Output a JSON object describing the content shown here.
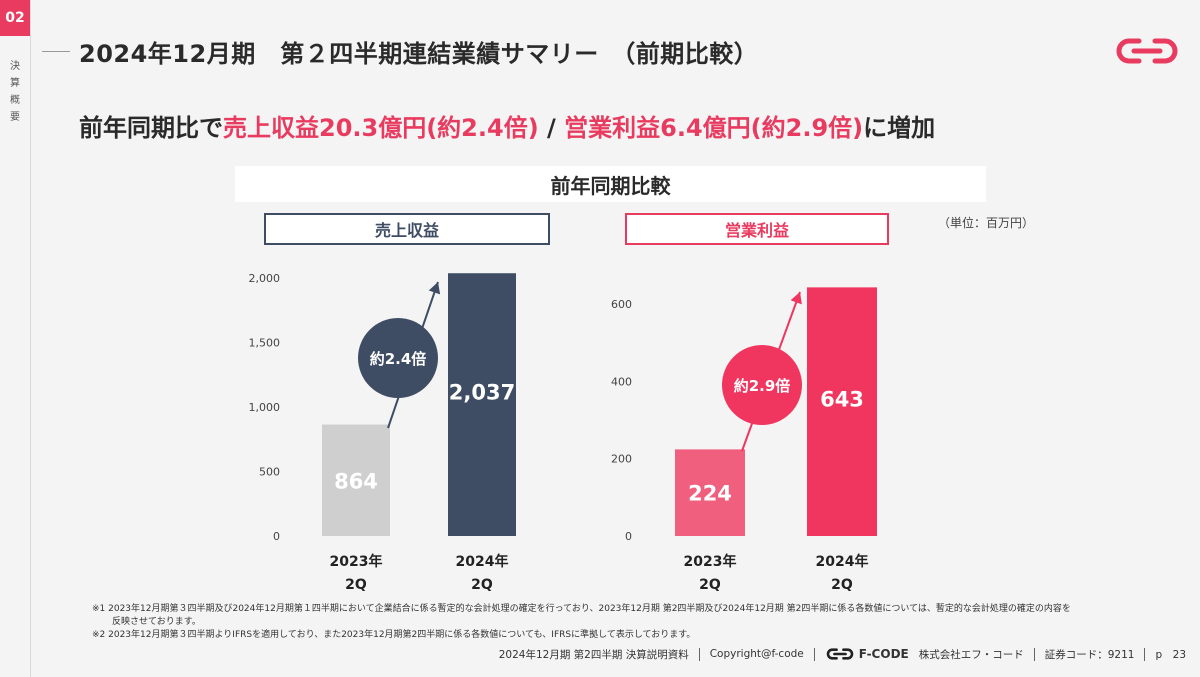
{
  "section": {
    "number": "02",
    "label": [
      "決",
      "算",
      "概",
      "要"
    ]
  },
  "page_title": "2024年12月期　第２四半期連結業績サマリー　（前期比較）",
  "headline": {
    "prefix": "前年同期比で",
    "sales": "売上収益20.3億円(約2.4倍)",
    "slash": " / ",
    "profit": "営業利益6.4億円(約2.9倍)",
    "suffix": "に増加"
  },
  "comparison_title": "前年同期比較",
  "unit_label": "（単位：百万円）",
  "colors": {
    "accent": "#e83b5f",
    "navy": "#3e4d63",
    "gray_bar": "#cfcfcf",
    "pink_light": "#f0607e",
    "pink_strong": "#f0365e"
  },
  "chart_data": [
    {
      "type": "bar",
      "title": "売上収益",
      "categories": [
        "2023年\n2Q",
        "2024年\n2Q"
      ],
      "values": [
        864,
        2037
      ],
      "value_labels": [
        "864",
        "2,037"
      ],
      "ylim": [
        0,
        2000
      ],
      "yticks": [
        0,
        500,
        1000,
        1500,
        2000
      ],
      "ytick_labels": [
        "0",
        "500",
        "1,000",
        "1,500",
        "2,000"
      ],
      "annotation": "約2.4倍",
      "bar_colors": [
        "#cfcfcf",
        "#3e4d63"
      ]
    },
    {
      "type": "bar",
      "title": "営業利益",
      "categories": [
        "2023年\n2Q",
        "2024年\n2Q"
      ],
      "values": [
        224,
        643
      ],
      "value_labels": [
        "224",
        "643"
      ],
      "ylim": [
        0,
        600
      ],
      "yticks": [
        0,
        200,
        400,
        600
      ],
      "ytick_labels": [
        "0",
        "200",
        "400",
        "600"
      ],
      "annotation": "約2.9倍",
      "bar_colors": [
        "#f0607e",
        "#f0365e"
      ]
    }
  ],
  "footnotes": [
    "※1  2023年12月期第３四半期及び2024年12月期第１四半期において企業結合に係る暫定的な会計処理の確定を行っており、2023年12月期 第2四半期及び2024年12月期 第2四半期に係る各数値については、暫定的な会計処理の確定の内容を",
    "       反映させております。",
    "※2  2023年12月期第３四半期よりIFRSを適用しており、また2023年12月期第2四半期に係る各数値についても、IFRSに準拠して表示しております。"
  ],
  "footer": {
    "doc": "2024年12月期 第2四半期 決算説明資料",
    "copyright": "Copyright@f-code",
    "brand": "F-CODE",
    "company": "株式会社エフ・コード",
    "ticker": "証券コード：9211",
    "page": "p　23"
  }
}
